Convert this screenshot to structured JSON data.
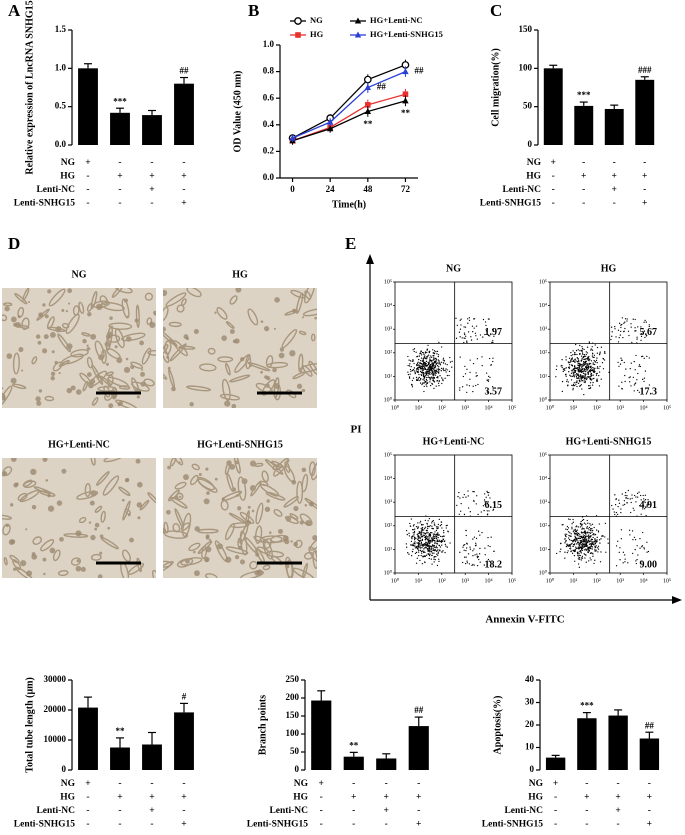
{
  "chart_data": [
    {
      "type": "bar",
      "panel_label": "A",
      "ylabel": "Relative expression of LncRNA SNHG15",
      "values": [
        1.0,
        0.42,
        0.39,
        0.8
      ],
      "errors": [
        0.06,
        0.06,
        0.06,
        0.08
      ],
      "annotations": [
        null,
        "***",
        null,
        "##"
      ],
      "color": "#000000",
      "ylim": [
        0,
        1.5
      ],
      "yticks": [
        {
          "value": 0,
          "label": "0.0"
        },
        0.5,
        {
          "value": 1,
          "label": "1.0"
        },
        1.5
      ],
      "conditions": [
        {
          "name": "NG",
          "signs": [
            "+",
            "-",
            "-",
            "-"
          ]
        },
        {
          "name": "HG",
          "signs": [
            "-",
            "+",
            "+",
            "+"
          ]
        },
        {
          "name": "Lenti-NC",
          "signs": [
            "-",
            "-",
            "+",
            "-"
          ]
        },
        {
          "name": "Lenti-SNHG15",
          "signs": [
            "-",
            "-",
            "-",
            "+"
          ]
        }
      ]
    },
    {
      "type": "line",
      "panel_label": "B",
      "xlabel": "Time(h)",
      "ylabel": "OD Value (450 nm)",
      "x": [
        0,
        24,
        48,
        72
      ],
      "xlim": [
        -8,
        80
      ],
      "xticks": [
        0,
        24,
        48,
        72
      ],
      "ylim": [
        0,
        1.0
      ],
      "yticks": [
        {
          "value": 0,
          "label": "0.0"
        },
        0.2,
        0.4,
        0.6,
        0.8,
        {
          "value": 1,
          "label": "1.0"
        }
      ],
      "series": [
        {
          "name": "NG",
          "color": "#000000",
          "marker": "circle-open",
          "values": [
            0.3,
            0.45,
            0.74,
            0.85
          ],
          "errors": [
            0.03,
            0.03,
            0.04,
            0.04
          ],
          "annotations": [
            null,
            null,
            null,
            null
          ]
        },
        {
          "name": "HG",
          "color": "#e8312f",
          "marker": "square",
          "values": [
            0.28,
            0.38,
            0.55,
            0.63
          ],
          "errors": [
            0.03,
            0.03,
            0.04,
            0.04
          ],
          "annotations": [
            null,
            null,
            null,
            null
          ]
        },
        {
          "name": "HG+Lenti-NC",
          "color": "#000000",
          "marker": "triangle",
          "values": [
            0.28,
            0.37,
            0.5,
            0.58
          ],
          "errors": [
            0.03,
            0.03,
            0.04,
            0.04
          ],
          "annotations": [
            null,
            null,
            "**",
            "**"
          ]
        },
        {
          "name": "HG+Lenti-SNHG15",
          "color": "#2b3fd6",
          "marker": "triangle",
          "values": [
            0.3,
            0.42,
            0.68,
            0.8
          ],
          "errors": [
            0.03,
            0.03,
            0.04,
            0.04
          ],
          "annotations": [
            null,
            null,
            "##",
            "##"
          ]
        }
      ]
    },
    {
      "type": "bar",
      "panel_label": "C",
      "ylabel": "Cell migration(%)",
      "values": [
        100,
        51,
        47,
        85
      ],
      "errors": [
        4,
        5,
        5,
        4
      ],
      "annotations": [
        null,
        "***",
        null,
        "###"
      ],
      "color": "#000000",
      "ylim": [
        0,
        150
      ],
      "yticks": [
        0,
        50,
        100,
        150
      ],
      "conditions": [
        {
          "name": "NG",
          "signs": [
            "+",
            "-",
            "-",
            "-"
          ]
        },
        {
          "name": "HG",
          "signs": [
            "-",
            "+",
            "+",
            "+"
          ]
        },
        {
          "name": "Lenti-NC",
          "signs": [
            "-",
            "-",
            "+",
            "-"
          ]
        },
        {
          "name": "Lenti-SNHG15",
          "signs": [
            "-",
            "-",
            "-",
            "+"
          ]
        }
      ]
    },
    {
      "type": "images",
      "panel_label": "D",
      "panels": [
        {
          "title": "NG"
        },
        {
          "title": "HG"
        },
        {
          "title": "HG+Lenti-NC"
        },
        {
          "title": "HG+Lenti-SNHG15"
        }
      ]
    },
    {
      "type": "flow",
      "panel_label": "E",
      "xlabel": "Annexin V-FITC",
      "ylabel": "PI",
      "log": true,
      "xlim": [
        1,
        100000
      ],
      "ylim": [
        1,
        100000
      ],
      "xticks": [
        {
          "value": 1,
          "label": "10⁰"
        },
        {
          "value": 10,
          "label": "10¹"
        },
        {
          "value": 100,
          "label": "10²"
        },
        {
          "value": 1000,
          "label": "10³"
        },
        {
          "value": 10000,
          "label": "10⁴"
        },
        {
          "value": 100000,
          "label": "10⁵"
        }
      ],
      "yticks": [
        {
          "value": 1,
          "label": "10⁰"
        },
        {
          "value": 10,
          "label": "10¹"
        },
        {
          "value": 100,
          "label": "10²"
        },
        {
          "value": 1000,
          "label": "10³"
        },
        {
          "value": 10000,
          "label": "10⁴"
        },
        {
          "value": 100000,
          "label": "10⁵"
        }
      ],
      "panels": [
        {
          "title": "NG",
          "values": [
            1.97,
            3.57
          ]
        },
        {
          "title": "HG",
          "values": [
            5.67,
            17.3
          ]
        },
        {
          "title": "HG+Lenti-NC",
          "values": [
            6.15,
            18.2
          ]
        },
        {
          "title": "HG+Lenti-SNHG15",
          "values": [
            4.91,
            9
          ],
          "value_labels": [
            "4.91",
            "9.00"
          ]
        }
      ]
    },
    {
      "type": "bar",
      "ylabel": "Total tube length (μm)",
      "values": [
        20800,
        7500,
        8500,
        19200
      ],
      "errors": [
        3500,
        3200,
        4000,
        3000
      ],
      "annotations": [
        null,
        "**",
        null,
        "#"
      ],
      "color": "#000000",
      "ylim": [
        0,
        30000
      ],
      "yticks": [
        0,
        10000,
        20000,
        30000
      ],
      "conditions": [
        {
          "name": "NG",
          "signs": [
            "+",
            "-",
            "-",
            "-"
          ]
        },
        {
          "name": "HG",
          "signs": [
            "-",
            "+",
            "+",
            "+"
          ]
        },
        {
          "name": "Lenti-NC",
          "signs": [
            "-",
            "-",
            "+",
            "-"
          ]
        },
        {
          "name": "Lenti-SNHG15",
          "signs": [
            "-",
            "-",
            "-",
            "+"
          ]
        }
      ]
    },
    {
      "type": "bar",
      "ylabel": "Branch points",
      "values": [
        193,
        37,
        32,
        122
      ],
      "errors": [
        27,
        12,
        13,
        25
      ],
      "annotations": [
        null,
        "**",
        null,
        "##"
      ],
      "color": "#000000",
      "ylim": [
        0,
        250
      ],
      "yticks": [
        0,
        50,
        100,
        150,
        200,
        250
      ],
      "conditions": [
        {
          "name": "NG",
          "signs": [
            "+",
            "-",
            "-",
            "-"
          ]
        },
        {
          "name": "HG",
          "signs": [
            "-",
            "+",
            "+",
            "+"
          ]
        },
        {
          "name": "Lenti-NC",
          "signs": [
            "-",
            "-",
            "+",
            "-"
          ]
        },
        {
          "name": "Lenti-SNHG15",
          "signs": [
            "-",
            "-",
            "-",
            "+"
          ]
        }
      ]
    },
    {
      "type": "bar",
      "ylabel": "Apoptosis(%)",
      "values": [
        5.5,
        23,
        24.2,
        14
      ],
      "errors": [
        1,
        2.5,
        2.5,
        2.8
      ],
      "annotations": [
        null,
        "***",
        null,
        "##"
      ],
      "color": "#000000",
      "ylim": [
        0,
        40
      ],
      "yticks": [
        0,
        10,
        20,
        30,
        40
      ],
      "conditions": [
        {
          "name": "NG",
          "signs": [
            "+",
            "-",
            "-",
            "-"
          ]
        },
        {
          "name": "HG",
          "signs": [
            "-",
            "+",
            "+",
            "+"
          ]
        },
        {
          "name": "Lenti-NC",
          "signs": [
            "-",
            "-",
            "+",
            "-"
          ]
        },
        {
          "name": "Lenti-SNHG15",
          "signs": [
            "-",
            "-",
            "-",
            "+"
          ]
        }
      ]
    }
  ]
}
